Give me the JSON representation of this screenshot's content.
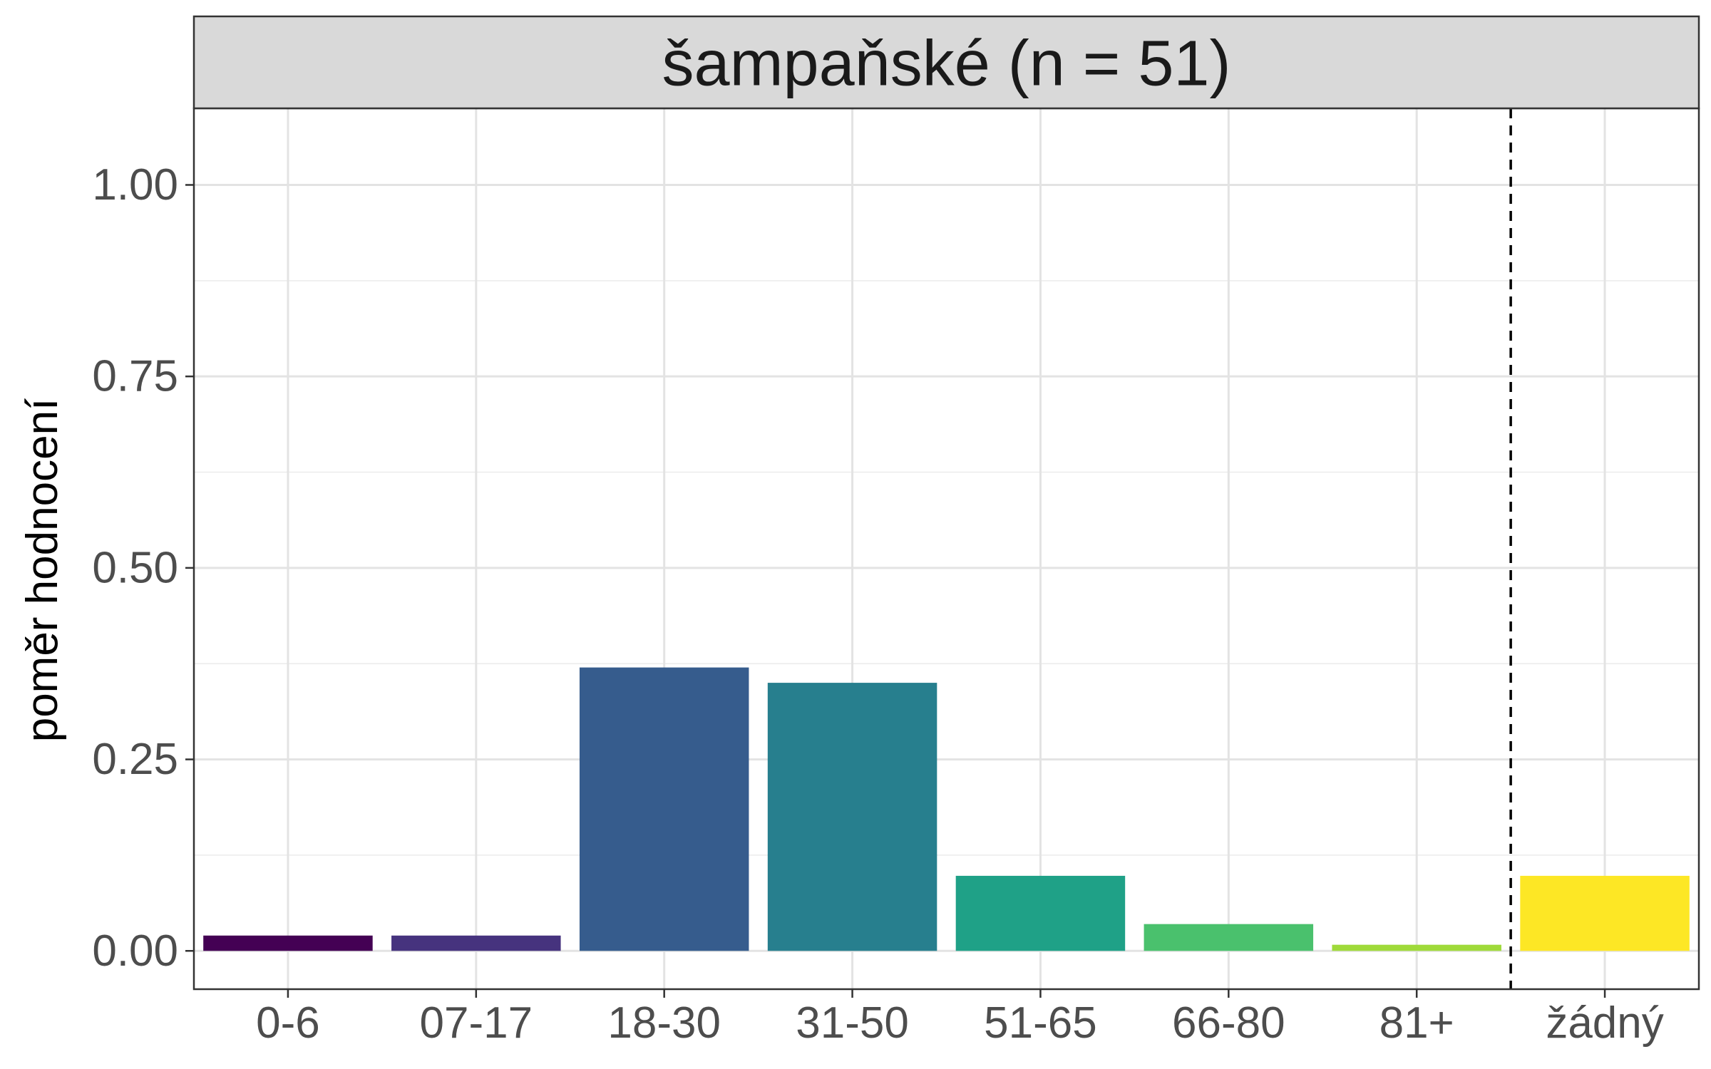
{
  "chart_data": {
    "type": "bar",
    "title": "šampaňské (n = 51)",
    "xlabel": "",
    "ylabel": "poměr hodnocení",
    "categories": [
      "0-6",
      "07-17",
      "18-30",
      "31-50",
      "51-65",
      "66-80",
      "81+",
      "žádný"
    ],
    "values": [
      0.02,
      0.02,
      0.37,
      0.35,
      0.098,
      0.035,
      0.008,
      0.098
    ],
    "bar_colors": [
      "#440154",
      "#46337E",
      "#365C8D",
      "#277F8E",
      "#1FA187",
      "#4AC16D",
      "#9FDA3A",
      "#FDE725"
    ],
    "ylim": [
      -0.05,
      1.1
    ],
    "yticks": [
      0.0,
      0.25,
      0.5,
      0.75,
      1.0
    ],
    "ytick_labels": [
      "0.00",
      "0.25",
      "0.50",
      "0.75",
      "1.00"
    ],
    "reference_line": {
      "between": [
        "81+",
        "žádný"
      ],
      "style": "dashed"
    },
    "grid": true,
    "legend": "none"
  }
}
